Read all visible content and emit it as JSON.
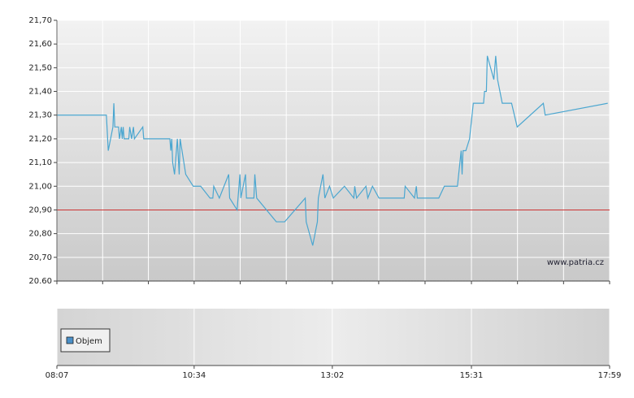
{
  "chart_data": {
    "type": "line",
    "watermark": "www.patria.cz",
    "x": [
      "08:07",
      "09:00",
      "09:02",
      "09:07",
      "09:08",
      "09:09",
      "09:13",
      "09:14",
      "09:16",
      "09:17",
      "09:18",
      "09:19",
      "09:24",
      "09:25",
      "09:27",
      "09:29",
      "09:30",
      "09:39",
      "09:40",
      "10:08",
      "10:09",
      "10:10",
      "10:11",
      "10:13",
      "10:16",
      "10:18",
      "10:19",
      "10:25",
      "10:33",
      "10:41",
      "10:51",
      "10:54",
      "10:55",
      "11:01",
      "11:06",
      "11:11",
      "11:12",
      "11:20",
      "11:23",
      "11:24",
      "11:29",
      "11:30",
      "11:38",
      "11:39",
      "11:41",
      "12:02",
      "12:11",
      "12:33",
      "12:34",
      "12:41",
      "12:46",
      "12:47",
      "12:52",
      "12:54",
      "12:59",
      "13:03",
      "13:15",
      "13:25",
      "13:26",
      "13:28",
      "13:38",
      "13:40",
      "13:45",
      "13:52",
      "14:19",
      "14:20",
      "14:30",
      "14:32",
      "14:33",
      "14:56",
      "15:02",
      "15:16",
      "15:20",
      "15:21",
      "15:22",
      "15:25",
      "15:29",
      "15:33",
      "15:44",
      "15:45",
      "15:47",
      "15:48",
      "15:55",
      "15:57",
      "15:59",
      "16:04",
      "16:14",
      "16:20",
      "16:48",
      "16:50",
      "17:57"
    ],
    "series": [
      {
        "color": "#4aa6d0",
        "values": [
          21.3,
          21.3,
          21.15,
          21.25,
          21.35,
          21.25,
          21.25,
          21.2,
          21.25,
          21.2,
          21.25,
          21.2,
          21.2,
          21.25,
          21.2,
          21.25,
          21.2,
          21.25,
          21.2,
          21.2,
          21.15,
          21.2,
          21.1,
          21.05,
          21.2,
          21.05,
          21.2,
          21.05,
          21.0,
          21.0,
          20.95,
          20.95,
          21.0,
          20.95,
          21.0,
          21.05,
          20.95,
          20.9,
          21.05,
          20.95,
          21.05,
          20.95,
          20.95,
          21.05,
          20.95,
          20.85,
          20.85,
          20.95,
          20.85,
          20.75,
          20.85,
          20.95,
          21.05,
          20.95,
          21.0,
          20.95,
          21.0,
          20.95,
          21.0,
          20.95,
          21.0,
          20.95,
          21.0,
          20.95,
          20.95,
          21.0,
          20.95,
          21.0,
          20.95,
          20.95,
          21.0,
          21.0,
          21.15,
          21.05,
          21.15,
          21.15,
          21.2,
          21.35,
          21.35,
          21.4,
          21.4,
          21.55,
          21.45,
          21.55,
          21.45,
          21.35,
          21.35,
          21.25,
          21.35,
          21.3,
          21.35
        ]
      }
    ],
    "reference_line": {
      "value": 20.9,
      "color": "#cc3333"
    },
    "xlim": [
      "08:07",
      "17:59"
    ],
    "xticks": [
      "08:07",
      "10:34",
      "13:02",
      "15:31",
      "17:59"
    ],
    "ylim": [
      20.6,
      21.7
    ],
    "yticks": [
      {
        "value": 21.7,
        "label": "21,70"
      },
      {
        "value": 21.6,
        "label": "21,60"
      },
      {
        "value": 21.5,
        "label": "21,50"
      },
      {
        "value": 21.4,
        "label": "21,40"
      },
      {
        "value": 21.3,
        "label": "21,30"
      },
      {
        "value": 21.2,
        "label": "21,20"
      },
      {
        "value": 21.1,
        "label": "21,10"
      },
      {
        "value": 21.0,
        "label": "21,00"
      },
      {
        "value": 20.9,
        "label": "20,90"
      },
      {
        "value": 20.8,
        "label": "20,80"
      },
      {
        "value": 20.7,
        "label": "20,70"
      },
      {
        "value": 20.6,
        "label": "20.60"
      }
    ],
    "grid": true,
    "volume": {
      "name": "Objem",
      "color": "#4a90c8"
    }
  }
}
